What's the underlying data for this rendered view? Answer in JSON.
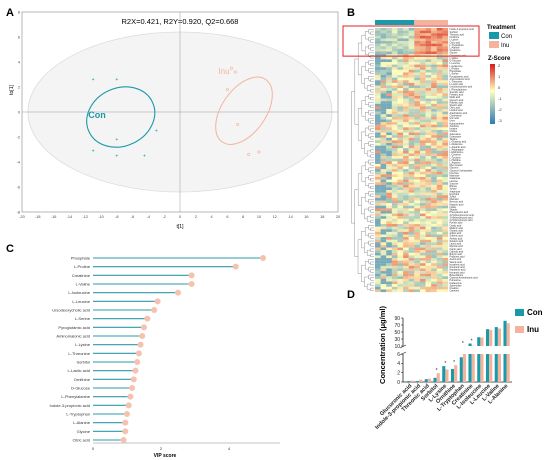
{
  "colors": {
    "con": "#1a9aa8",
    "inu": "#f4b39c",
    "ellipse": "#dcdcdc",
    "stem": "#2e9aa9",
    "dot": "#f6c2b0",
    "hm_low": "#2c7bb6",
    "hm_mid": "#ffffbf",
    "hm_high": "#d7191c",
    "highlight": "#e02020"
  },
  "panel_letters": [
    "A",
    "B",
    "C",
    "D"
  ],
  "chart_data": [
    {
      "type": "scatter",
      "panel": "A",
      "title": "R2X=0.421, R2Y=0.920, Q2=0.668",
      "xlabel": "t[1]",
      "ylabel": "to[1]",
      "xlim": [
        -20,
        20
      ],
      "ylim": [
        -8,
        8
      ],
      "x_ticks": [
        "-20",
        "-18",
        "-16",
        "-14",
        "-12",
        "-10",
        "-8",
        "-6",
        "-4",
        "-2",
        "0",
        "2",
        "4",
        "6",
        "8",
        "10",
        "12",
        "14",
        "16",
        "18",
        "20"
      ],
      "y_ticks": [
        "-8",
        "-6",
        "-4",
        "-2",
        "0",
        "2",
        "4",
        "6",
        "8"
      ],
      "series": [
        {
          "name": "Con",
          "points": [
            [
              -11,
              2.6
            ],
            [
              -8,
              2.6
            ],
            [
              -8,
              -2.2
            ],
            [
              -11,
              -3.1
            ],
            [
              -8,
              -3.5
            ],
            [
              -4.5,
              -3.5
            ],
            [
              -3,
              -1.5
            ]
          ]
        },
        {
          "name": "Inu",
          "points": [
            [
              6.5,
              3.5
            ],
            [
              7,
              3.2
            ],
            [
              6,
              1.8
            ],
            [
              7.3,
              -1.0
            ],
            [
              8.7,
              -3.4
            ],
            [
              10,
              -3.2
            ]
          ]
        }
      ],
      "group_labels": [
        "Con",
        "Inu"
      ]
    },
    {
      "type": "heatmap",
      "panel": "B",
      "legend": {
        "treatment_title": "Treatment",
        "treatment_items": [
          "Con",
          "Inu"
        ],
        "scale_title": "Z-Score",
        "scale_ticks": [
          "2",
          "1",
          "0",
          "-1",
          "-2",
          "-3"
        ]
      },
      "row_labels": [
        "Indole-3-propionic acid",
        "Sorbitol",
        "Threonic acid",
        "Ornithine",
        "L-Lysine",
        "Citric acid",
        "L-Tryptophan",
        "L-Alanine",
        "Creatinine",
        "Glycine",
        "Glucuronic acid",
        "L-Valine",
        "D-Glucose",
        "L-Leucine",
        "L-Isoleucine",
        "L-Proline",
        "Phosphate",
        "L-Serine",
        "Pyroglutamic acid",
        "Aminomalonic acid",
        "L-Threonine",
        "L-Lactic acid",
        "Ursodeoxycholic acid",
        "L-Phenylalanine",
        "Succinic acid",
        "Fumaric acid",
        "Malic acid",
        "Glyceric acid",
        "Palmitic acid",
        "Stearic acid",
        "Oleic acid",
        "Linoleic acid",
        "Arachidonic acid",
        "Cholesterol",
        "Uric acid",
        "Urea",
        "Hypoxanthine",
        "Xanthine",
        "Inosine",
        "Uridine",
        "Adenosine",
        "Guanosine",
        "Taurine",
        "L-Glutamic acid",
        "L-Glutamine",
        "L-Aspartic acid",
        "L-Asparagine",
        "L-Methionine",
        "L-Cysteine",
        "L-Tyrosine",
        "L-Histidine",
        "L-Arginine",
        "Myo-inositol",
        "Glycerol",
        "Glycerol-3-phosphate",
        "Fructose",
        "Mannose",
        "Galactose",
        "Lactose",
        "Sucrose",
        "Ribose",
        "Xylose",
        "Arabinose",
        "Erythritol",
        "Xylitol",
        "Mannitol",
        "Benzoic acid",
        "Hippuric acid",
        "Indole",
        "Skatole",
        "Phenylacetic acid",
        "4-Hydroxybenzoic acid",
        "3-Hydroxybutyric acid",
        "2-Hydroxybutyric acid",
        "Pyruvic acid",
        "Oxalic acid",
        "Malonic acid",
        "Glutaric acid",
        "Adipic acid",
        "Suberic acid",
        "Azelaic acid",
        "Sebacic acid",
        "Lauric acid",
        "Myristic acid",
        "Capric acid",
        "Caprylic acid",
        "Butyric acid",
        "Propionic acid",
        "Acetic acid",
        "Valeric acid",
        "Isovaleric acid",
        "Nonanoic acid",
        "Heptanoic acid",
        "Hexanoic acid",
        "Beta-Alanine",
        "Gamma-Aminobutyric acid",
        "Putrescine",
        "Cadaverine",
        "Spermidine",
        "Creatine",
        "Carnitine"
      ],
      "highlighted_rows": 10,
      "columns": 13
    },
    {
      "type": "lollipop",
      "panel": "C",
      "xlabel": "VIP score",
      "xlim": [
        0,
        5.5
      ],
      "x_ticks": [
        0,
        2,
        4
      ],
      "categories": [
        "Phosphate",
        "L-Proline",
        "Creatinine",
        "L-Valine",
        "L-Isoleucine",
        "L-Leucine",
        "Ursodeoxycholic acid",
        "L-Serine",
        "Pyroglutamic acid",
        "Aminomalonic acid",
        "L-Lysine",
        "L-Threonine",
        "Sorbitol",
        "L-Lactic acid",
        "Ornithine",
        "D-Glucose",
        "L-Phenylalanine",
        "Indole-3-propionic acid",
        "L-Tryptophan",
        "L-Alanine",
        "Glycine",
        "Citric acid"
      ],
      "values": [
        5.0,
        4.2,
        2.9,
        2.9,
        2.5,
        1.9,
        1.8,
        1.6,
        1.5,
        1.45,
        1.4,
        1.35,
        1.3,
        1.25,
        1.2,
        1.15,
        1.1,
        1.05,
        1.0,
        0.95,
        0.95,
        0.9
      ]
    },
    {
      "type": "bar",
      "panel": "D",
      "ylabel": "Concentration (μg/ml)",
      "y_ticks_upper": [
        10,
        30,
        50,
        70,
        90
      ],
      "y_ticks_lower": [
        0,
        2,
        4,
        6
      ],
      "categories": [
        "Glucuronic acid",
        "Indole-3-propionic acid",
        "Threonic acid",
        "Sorbitol",
        "L-Lysine",
        "Ornithine",
        "L-Tryptophan",
        "Creatinine",
        "L-Isoleucine",
        "L-Leucine",
        "L-Valine",
        "L-Alanine"
      ],
      "series": [
        {
          "name": "Con",
          "values": [
            0.2,
            0.2,
            0.6,
            0.9,
            3.4,
            2.8,
            5.3,
            17,
            35,
            58,
            64,
            82
          ]
        },
        {
          "name": "Inu",
          "values": [
            0.3,
            0.5,
            0.7,
            1.9,
            2.7,
            3.6,
            6.1,
            11,
            34,
            56,
            60,
            75
          ]
        }
      ],
      "significance": [
        "",
        "",
        "",
        "*",
        "*",
        "*",
        "*",
        "*",
        "",
        "",
        "",
        ""
      ]
    }
  ]
}
